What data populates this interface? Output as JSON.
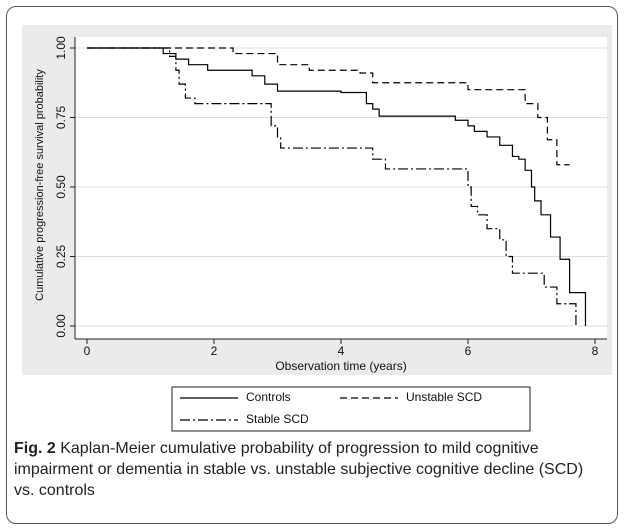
{
  "chart_data": {
    "type": "step",
    "y_label": "Cumulative progression-free survival probability",
    "x_label": "Observation time (years)",
    "caption_label": "Fig. 2",
    "caption": "Kaplan-Meier cumulative probability of progression to mild cognitive impairment or dementia in stable vs. unstable subjective cognitive decline (SCD) vs. controls",
    "xlim": [
      0,
      8
    ],
    "xticks": [
      0,
      2,
      4,
      6,
      8
    ],
    "ylim": [
      0,
      1
    ],
    "yticks": [
      {
        "value": 0,
        "label": "0.00"
      },
      0.25,
      {
        "value": 0.5,
        "label": "0.50"
      },
      0.75,
      {
        "value": 1,
        "label": "1.00"
      }
    ],
    "grid": true,
    "series": [
      {
        "name": "Controls",
        "color": "#000000",
        "dash": "solid",
        "x": [
          0,
          1.2,
          1.4,
          1.6,
          1.9,
          2.6,
          2.8,
          3.0,
          4.0,
          4.4,
          4.5,
          4.6,
          5.8,
          6.0,
          6.1,
          6.3,
          6.5,
          6.7,
          6.8,
          6.9,
          7.0,
          7.05,
          7.15,
          7.3,
          7.45,
          7.6,
          7.85
        ],
        "values": [
          1,
          0.98,
          0.96,
          0.94,
          0.92,
          0.9,
          0.87,
          0.845,
          0.84,
          0.8,
          0.78,
          0.755,
          0.74,
          0.72,
          0.7,
          0.68,
          0.65,
          0.61,
          0.6,
          0.56,
          0.5,
          0.45,
          0.4,
          0.32,
          0.24,
          0.12,
          0
        ]
      },
      {
        "name": "Unstable SCD",
        "color": "#000000",
        "dash": "dashed",
        "x": [
          0,
          2.3,
          3.0,
          3.5,
          4.3,
          4.5,
          6.0,
          6.9,
          7.1,
          7.25,
          7.4,
          7.6
        ],
        "values": [
          1,
          0.98,
          0.94,
          0.92,
          0.91,
          0.875,
          0.85,
          0.8,
          0.75,
          0.67,
          0.58,
          0.58
        ]
      },
      {
        "name": "Stable SCD",
        "color": "#000000",
        "dash": "dashdot",
        "x": [
          0,
          1.3,
          1.4,
          1.45,
          1.55,
          1.7,
          1.8,
          2.9,
          3.0,
          3.05,
          3.1,
          4.5,
          4.7,
          6.0,
          6.05,
          6.15,
          6.3,
          6.5,
          6.6,
          6.7,
          6.8,
          7.2,
          7.4,
          7.6,
          7.7
        ],
        "values": [
          1,
          0.97,
          0.92,
          0.87,
          0.82,
          0.8,
          0.8,
          0.72,
          0.68,
          0.64,
          0.64,
          0.6,
          0.565,
          0.5,
          0.43,
          0.4,
          0.35,
          0.31,
          0.25,
          0.19,
          0.19,
          0.14,
          0.08,
          0.08,
          0
        ]
      }
    ]
  }
}
